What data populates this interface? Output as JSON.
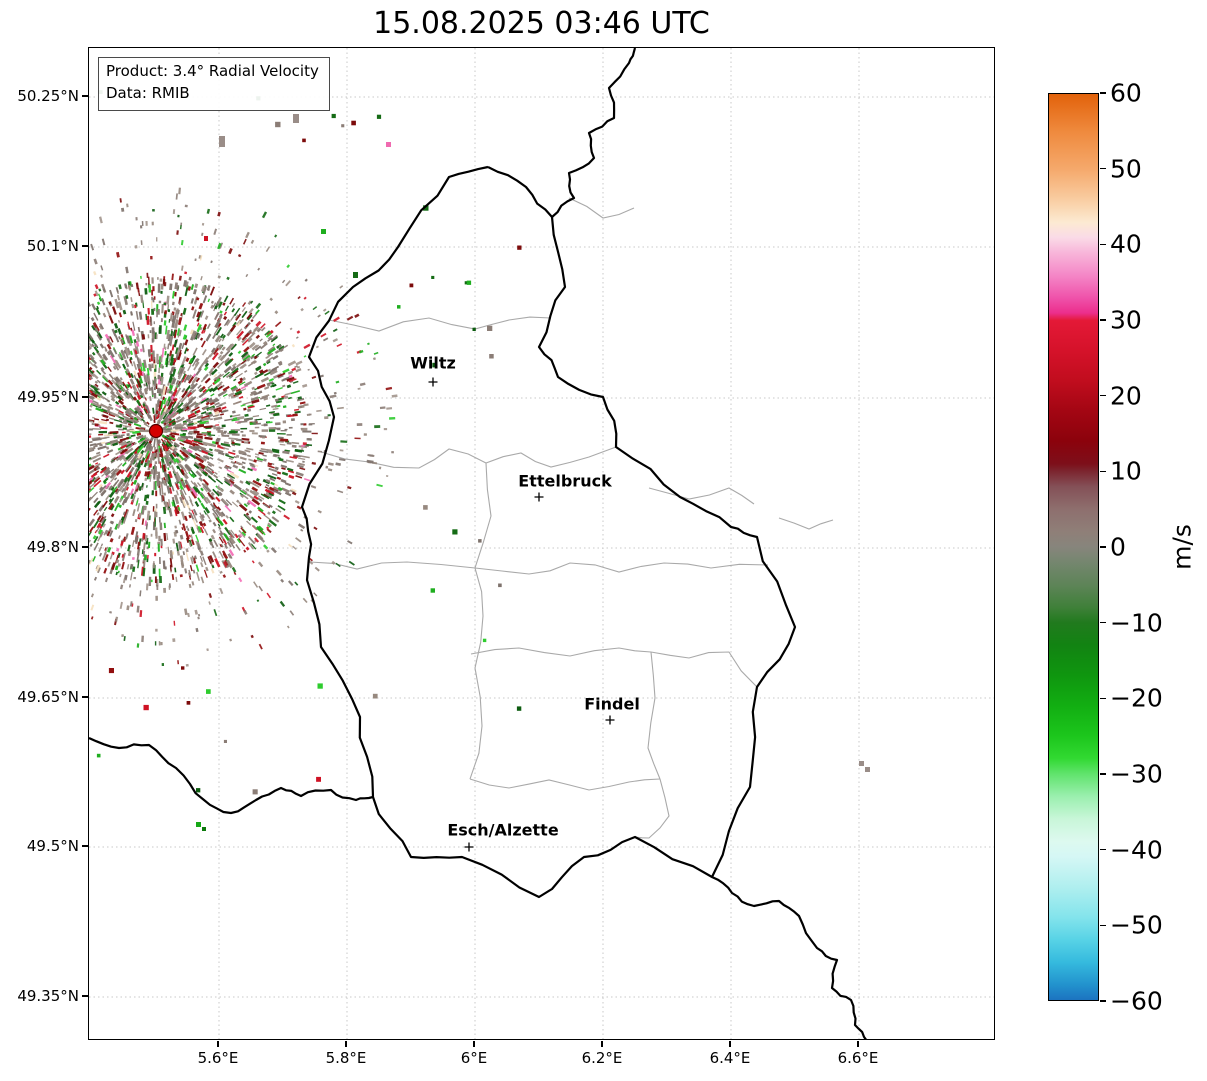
{
  "title": "15.08.2025 03:46 UTC",
  "info_box": {
    "product": "Product: 3.4° Radial Velocity",
    "source": "Data: RMIB"
  },
  "axes": {
    "y_tick_labels": [
      "50.25°N",
      "50.1°N",
      "49.95°N",
      "49.8°N",
      "49.65°N",
      "49.5°N",
      "49.35°N"
    ],
    "x_tick_labels": [
      "5.6°E",
      "5.8°E",
      "6°E",
      "6.2°E",
      "6.4°E",
      "6.6°E"
    ]
  },
  "cities": [
    {
      "name": "Wiltz"
    },
    {
      "name": "Ettelbruck"
    },
    {
      "name": "Findel"
    },
    {
      "name": "Esch/Alzette"
    }
  ],
  "radar_site": {
    "marker_color": "#d40000",
    "marker_edge_color": "#550000"
  },
  "map_colors": {
    "country_border": "#000000",
    "district_border": "#a9a9a9",
    "gridline": "#c8c8c8",
    "background": "#ffffff"
  },
  "colorbar": {
    "label": "m/s",
    "min": -60,
    "max": 60,
    "tick_values": [
      60,
      50,
      40,
      30,
      20,
      10,
      0,
      -10,
      -20,
      -30,
      -40,
      -50,
      -60
    ],
    "tick_labels": [
      "60",
      "50",
      "40",
      "30",
      "20",
      "10",
      "0",
      "−10",
      "−20",
      "−30",
      "−40",
      "−50",
      "−60"
    ],
    "stops": [
      {
        "v": 60,
        "c": "#e2620b"
      },
      {
        "v": 55,
        "c": "#ef8a3e"
      },
      {
        "v": 50,
        "c": "#f5a96c"
      },
      {
        "v": 46,
        "c": "#f9cda2"
      },
      {
        "v": 43,
        "c": "#fcead2"
      },
      {
        "v": 41,
        "c": "#fadbe7"
      },
      {
        "v": 39,
        "c": "#f8b6da"
      },
      {
        "v": 36,
        "c": "#f487c7"
      },
      {
        "v": 33,
        "c": "#ef52aa"
      },
      {
        "v": 31,
        "c": "#ec2e8c"
      },
      {
        "v": 30,
        "c": "#e41937"
      },
      {
        "v": 26,
        "c": "#d5122a"
      },
      {
        "v": 22,
        "c": "#c10d1e"
      },
      {
        "v": 18,
        "c": "#a30613"
      },
      {
        "v": 14,
        "c": "#8b020c"
      },
      {
        "v": 11,
        "c": "#7d0f1a"
      },
      {
        "v": 10,
        "c": "#7c2630"
      },
      {
        "v": 8,
        "c": "#845057"
      },
      {
        "v": 5,
        "c": "#8e6f6e"
      },
      {
        "v": 2,
        "c": "#8f7f78"
      },
      {
        "v": 0,
        "c": "#87857c"
      },
      {
        "v": -2,
        "c": "#75866f"
      },
      {
        "v": -5,
        "c": "#5e8458"
      },
      {
        "v": -8,
        "c": "#3f8039"
      },
      {
        "v": -10,
        "c": "#217a1e"
      },
      {
        "v": -13,
        "c": "#128312"
      },
      {
        "v": -17,
        "c": "#0f960f"
      },
      {
        "v": -21,
        "c": "#12ae12"
      },
      {
        "v": -25,
        "c": "#1cc61c"
      },
      {
        "v": -28,
        "c": "#32d932"
      },
      {
        "v": -30,
        "c": "#5fe36b"
      },
      {
        "v": -33,
        "c": "#9aefae"
      },
      {
        "v": -36,
        "c": "#c8f6d8"
      },
      {
        "v": -39,
        "c": "#ddf9ef"
      },
      {
        "v": -41,
        "c": "#d5f7f5"
      },
      {
        "v": -45,
        "c": "#b0efef"
      },
      {
        "v": -49,
        "c": "#84e4ec"
      },
      {
        "v": -52,
        "c": "#58d3e6"
      },
      {
        "v": -55,
        "c": "#35bade"
      },
      {
        "v": -58,
        "c": "#2292cd"
      },
      {
        "v": -60,
        "c": "#1c73c0"
      }
    ]
  },
  "echo_palette": {
    "gray": [
      "#97897f",
      "#8b7d76",
      "#a2958c",
      "#7e726c"
    ],
    "dark_green": [
      "#0d5c10",
      "#156b15"
    ],
    "green": [
      "#1fae1f",
      "#2ecc2e"
    ],
    "dark_red": [
      "#7c0b0b",
      "#920f0f"
    ],
    "red": [
      "#cf1224"
    ],
    "pink": [
      "#f470b8"
    ],
    "cream": [
      "#f7e2c0"
    ]
  }
}
